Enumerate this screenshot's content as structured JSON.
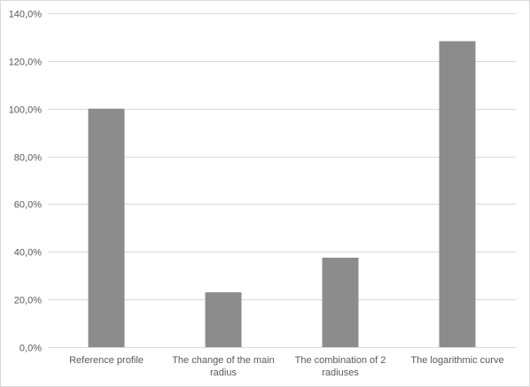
{
  "chart_data": {
    "type": "bar",
    "categories": [
      "Reference profile",
      "The change of the main radius",
      "The combination of 2 radiuses",
      "The logarithmic curve"
    ],
    "category_lines": [
      [
        "Reference profile"
      ],
      [
        "The change of the main",
        "radius"
      ],
      [
        "The combination of 2",
        "radiuses"
      ],
      [
        "The logarithmic curve"
      ]
    ],
    "values": [
      100.0,
      23.0,
      37.5,
      128.3
    ],
    "ylim": [
      0,
      140
    ],
    "yticks": [
      0,
      20,
      40,
      60,
      80,
      100,
      120,
      140
    ],
    "ytick_labels": [
      "0,0%",
      "20,0%",
      "40,0%",
      "60,0%",
      "80,0%",
      "100,0%",
      "120,0%",
      "140,0%"
    ],
    "title": "",
    "xlabel": "",
    "ylabel": "",
    "grid": true,
    "legend": "none",
    "colors": {
      "bar": "#8c8c8c",
      "grid": "#d9d9d9",
      "text": "#595959",
      "frame": "#d9d9d9"
    }
  }
}
